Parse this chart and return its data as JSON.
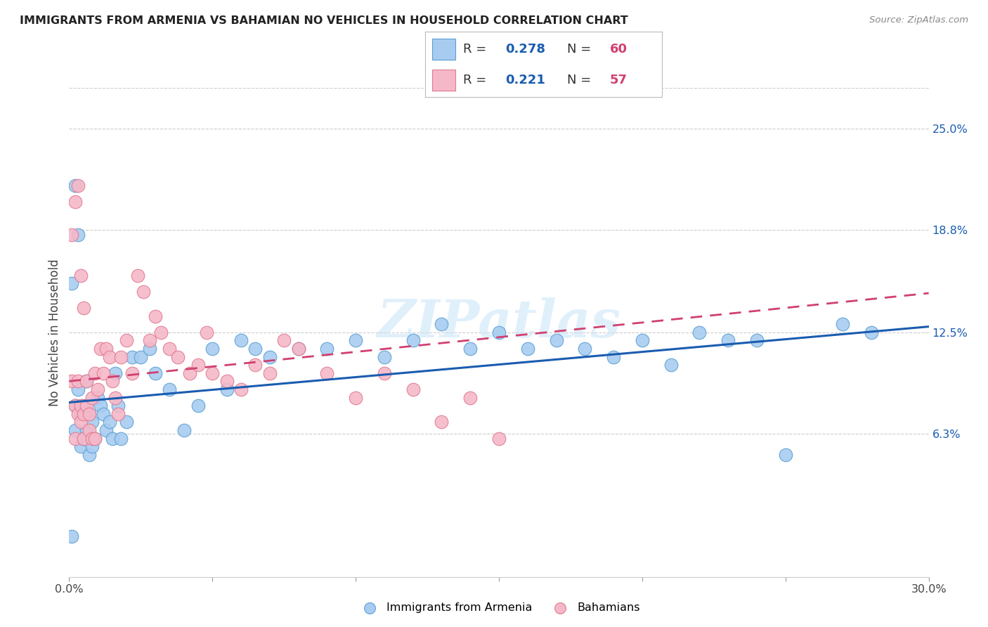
{
  "title": "IMMIGRANTS FROM ARMENIA VS BAHAMIAN NO VEHICLES IN HOUSEHOLD CORRELATION CHART",
  "source": "Source: ZipAtlas.com",
  "ylabel": "No Vehicles in Household",
  "xlim": [
    0.0,
    0.3
  ],
  "ylim": [
    -0.025,
    0.275
  ],
  "xticks": [
    0.0,
    0.05,
    0.1,
    0.15,
    0.2,
    0.25,
    0.3
  ],
  "xticklabels": [
    "0.0%",
    "",
    "",
    "",
    "",
    "",
    "30.0%"
  ],
  "ytick_positions": [
    0.063,
    0.125,
    0.188,
    0.25
  ],
  "ytick_labels": [
    "6.3%",
    "12.5%",
    "18.8%",
    "25.0%"
  ],
  "series1_label": "Immigrants from Armenia",
  "series2_label": "Bahamians",
  "series1_color": "#A8CCF0",
  "series2_color": "#F5B8C8",
  "series1_edge_color": "#5A9FD4",
  "series2_edge_color": "#E07A90",
  "trendline1_color": "#1A5CB0",
  "trendline2_color": "#D04070",
  "R1": 0.278,
  "N1": 60,
  "R2": 0.221,
  "N2": 57,
  "legend_R_color": "#1A5CB0",
  "legend_N_color": "#D04070",
  "watermark": "ZIPatlas",
  "background_color": "#FFFFFF",
  "grid_color": "#CCCCCC",
  "series1_x": [
    0.001,
    0.002,
    0.002,
    0.003,
    0.004,
    0.004,
    0.005,
    0.005,
    0.006,
    0.006,
    0.007,
    0.007,
    0.008,
    0.008,
    0.009,
    0.01,
    0.011,
    0.012,
    0.013,
    0.014,
    0.015,
    0.016,
    0.017,
    0.018,
    0.02,
    0.022,
    0.025,
    0.028,
    0.03,
    0.035,
    0.04,
    0.045,
    0.05,
    0.055,
    0.06,
    0.065,
    0.07,
    0.08,
    0.09,
    0.1,
    0.11,
    0.12,
    0.13,
    0.14,
    0.15,
    0.16,
    0.17,
    0.18,
    0.19,
    0.2,
    0.21,
    0.22,
    0.23,
    0.24,
    0.25,
    0.27,
    0.28,
    0.001,
    0.003,
    0.002
  ],
  "series1_y": [
    0.155,
    0.08,
    0.065,
    0.09,
    0.075,
    0.055,
    0.08,
    0.06,
    0.095,
    0.065,
    0.075,
    0.05,
    0.07,
    0.055,
    0.06,
    0.085,
    0.08,
    0.075,
    0.065,
    0.07,
    0.06,
    0.1,
    0.08,
    0.06,
    0.07,
    0.11,
    0.11,
    0.115,
    0.1,
    0.09,
    0.065,
    0.08,
    0.115,
    0.09,
    0.12,
    0.115,
    0.11,
    0.115,
    0.115,
    0.12,
    0.11,
    0.12,
    0.13,
    0.115,
    0.125,
    0.115,
    0.12,
    0.115,
    0.11,
    0.12,
    0.105,
    0.125,
    0.12,
    0.12,
    0.05,
    0.13,
    0.125,
    0.0,
    0.185,
    0.215
  ],
  "series2_x": [
    0.001,
    0.001,
    0.002,
    0.002,
    0.003,
    0.003,
    0.004,
    0.004,
    0.005,
    0.005,
    0.006,
    0.006,
    0.007,
    0.007,
    0.008,
    0.008,
    0.009,
    0.009,
    0.01,
    0.011,
    0.012,
    0.013,
    0.014,
    0.015,
    0.016,
    0.017,
    0.018,
    0.02,
    0.022,
    0.024,
    0.026,
    0.028,
    0.03,
    0.032,
    0.035,
    0.038,
    0.042,
    0.045,
    0.048,
    0.05,
    0.055,
    0.06,
    0.065,
    0.07,
    0.075,
    0.08,
    0.09,
    0.1,
    0.11,
    0.12,
    0.13,
    0.14,
    0.15,
    0.002,
    0.003,
    0.004,
    0.005
  ],
  "series2_y": [
    0.185,
    0.095,
    0.06,
    0.08,
    0.095,
    0.075,
    0.08,
    0.07,
    0.075,
    0.06,
    0.095,
    0.08,
    0.075,
    0.065,
    0.085,
    0.06,
    0.1,
    0.06,
    0.09,
    0.115,
    0.1,
    0.115,
    0.11,
    0.095,
    0.085,
    0.075,
    0.11,
    0.12,
    0.1,
    0.16,
    0.15,
    0.12,
    0.135,
    0.125,
    0.115,
    0.11,
    0.1,
    0.105,
    0.125,
    0.1,
    0.095,
    0.09,
    0.105,
    0.1,
    0.12,
    0.115,
    0.1,
    0.085,
    0.1,
    0.09,
    0.07,
    0.085,
    0.06,
    0.205,
    0.215,
    0.16,
    0.14
  ],
  "trendline1_intercept": 0.082,
  "trendline1_slope": 0.155,
  "trendline2_intercept": 0.095,
  "trendline2_slope": 0.18
}
